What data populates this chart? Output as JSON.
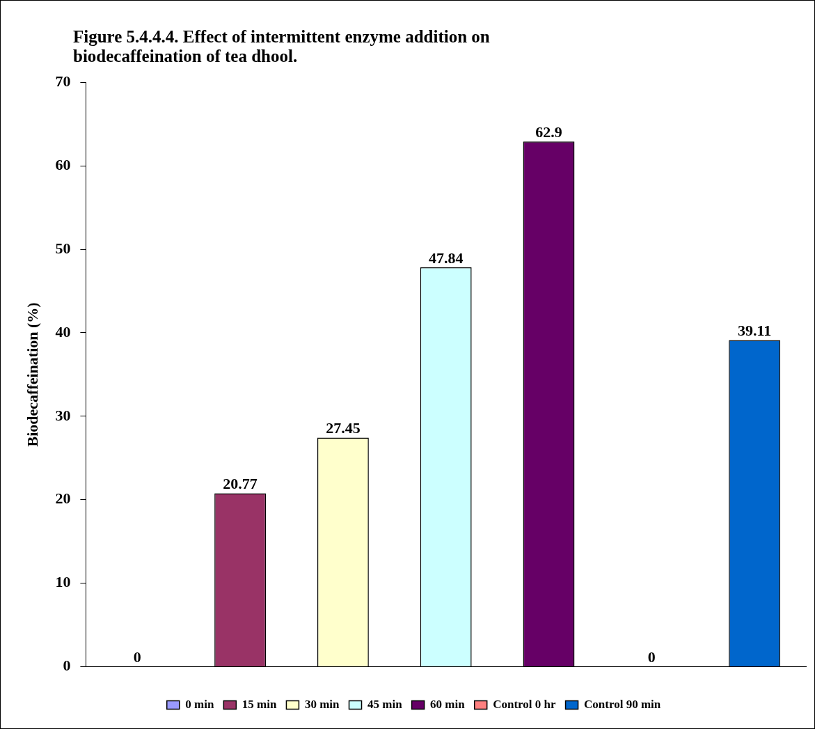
{
  "chart_data": {
    "type": "bar",
    "title": "Figure 5.4.4.4. Effect of intermittent enzyme addition on biodecaffeination of tea dhool.",
    "ylabel": "Biodecaffeination (%)",
    "categories": [
      null,
      null,
      null,
      null,
      null,
      null,
      null
    ],
    "series": [
      {
        "name": "0 min",
        "color": "#9999ff",
        "values": [
          0,
          null,
          null,
          null,
          null,
          null,
          null
        ]
      },
      {
        "name": "15 min",
        "color": "#993366",
        "values": [
          null,
          20.77,
          null,
          null,
          null,
          null,
          null
        ]
      },
      {
        "name": "30 min",
        "color": "#ffffcc",
        "values": [
          null,
          null,
          27.45,
          null,
          null,
          null,
          null
        ]
      },
      {
        "name": "45 min",
        "color": "#ccffff",
        "values": [
          null,
          null,
          null,
          47.84,
          null,
          null,
          null
        ]
      },
      {
        "name": "60 min",
        "color": "#660066",
        "values": [
          null,
          null,
          null,
          null,
          62.9,
          null,
          null
        ]
      },
      {
        "name": "Control 0 hr",
        "color": "#ff8080",
        "values": [
          null,
          null,
          null,
          null,
          null,
          0,
          null
        ]
      },
      {
        "name": "Control 90 min",
        "color": "#0066cc",
        "values": [
          null,
          null,
          null,
          null,
          null,
          null,
          39.11
        ]
      }
    ],
    "ylim": [
      0,
      70
    ],
    "yticks": [
      0,
      10,
      20,
      30,
      40,
      50,
      60,
      70
    ],
    "grid": false,
    "legend": "bottom",
    "data_labels": true
  }
}
